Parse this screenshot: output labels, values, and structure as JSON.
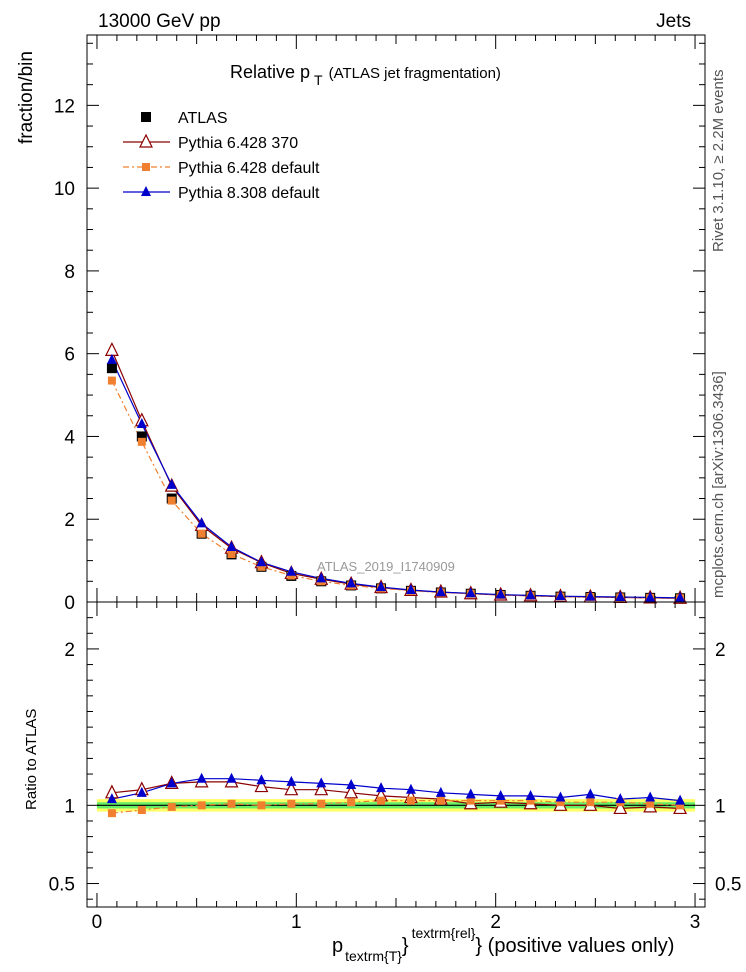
{
  "header": {
    "left": "13000 GeV pp",
    "right": "Jets"
  },
  "side": {
    "top": "Rivet 3.1.10, ≥ 2.2M events",
    "bottom": "mcplots.cern.ch [arXiv:1306.3436]"
  },
  "chart_data": {
    "type": "line",
    "title_main": "Relative p",
    "title_sub": "T",
    "title_rest": "(ATLAS jet fragmentation)",
    "watermark": "ATLAS_2019_I1740909",
    "ylabel": "fraction/bin",
    "ratio_ylabel": "Ratio to ATLAS",
    "xlabel_main": "p",
    "xlabel_sub": "textrm{T}",
    "xlabel_sup": "textrm{rel}",
    "xlabel_rest": "} (positive values only)",
    "xlim": [
      -0.05,
      3.05
    ],
    "ylim": [
      0,
      13.7
    ],
    "ratio_ylim": [
      0.35,
      2.3
    ],
    "x_ticks": [
      "0",
      "1",
      "2",
      "3"
    ],
    "y_ticks": [
      "0",
      "2",
      "4",
      "6",
      "8",
      "10",
      "12"
    ],
    "ratio_ticks": [
      "0.5",
      "1",
      "2"
    ],
    "x": [
      0.075,
      0.225,
      0.375,
      0.525,
      0.675,
      0.825,
      0.975,
      1.125,
      1.275,
      1.425,
      1.575,
      1.725,
      1.875,
      2.025,
      2.175,
      2.325,
      2.475,
      2.625,
      2.775,
      2.925
    ],
    "series": [
      {
        "name": "ATLAS",
        "color": "#000000",
        "marker": "square",
        "values": [
          5.65,
          4.0,
          2.5,
          1.65,
          1.15,
          0.85,
          0.63,
          0.5,
          0.4,
          0.33,
          0.27,
          0.23,
          0.2,
          0.17,
          0.15,
          0.13,
          0.12,
          0.11,
          0.1,
          0.09
        ],
        "ratio": [
          1.0,
          1.0,
          1.0,
          1.0,
          1.0,
          1.0,
          1.0,
          1.0,
          1.0,
          1.0,
          1.0,
          1.0,
          1.0,
          1.0,
          1.0,
          1.0,
          1.0,
          1.0,
          1.0,
          1.0
        ]
      },
      {
        "name": "Pythia 6.428 370",
        "color": "#8b0000",
        "marker": "triangle-open",
        "values": [
          6.08,
          4.38,
          2.8,
          1.85,
          1.3,
          0.95,
          0.69,
          0.55,
          0.43,
          0.35,
          0.28,
          0.24,
          0.2,
          0.17,
          0.15,
          0.13,
          0.12,
          0.11,
          0.1,
          0.09
        ],
        "ratio": [
          1.08,
          1.1,
          1.14,
          1.15,
          1.15,
          1.12,
          1.1,
          1.1,
          1.08,
          1.06,
          1.05,
          1.04,
          1.01,
          1.02,
          1.01,
          1.0,
          1.0,
          0.98,
          0.99,
          0.98
        ]
      },
      {
        "name": "Pythia 6.428 default",
        "color": "#f08030",
        "marker": "square-small",
        "dashed": true,
        "values": [
          5.35,
          3.87,
          2.45,
          1.65,
          1.16,
          0.85,
          0.64,
          0.5,
          0.4,
          0.33,
          0.27,
          0.23,
          0.2,
          0.17,
          0.15,
          0.13,
          0.12,
          0.11,
          0.1,
          0.09
        ],
        "ratio": [
          0.95,
          0.97,
          0.99,
          1.0,
          1.01,
          1.0,
          1.01,
          1.01,
          1.02,
          1.03,
          1.03,
          1.03,
          1.03,
          1.03,
          1.03,
          1.02,
          1.02,
          1.02,
          1.01,
          1.0
        ]
      },
      {
        "name": "Pythia 8.308 default",
        "color": "#0000cc",
        "marker": "triangle",
        "values": [
          5.85,
          4.3,
          2.83,
          1.9,
          1.33,
          0.96,
          0.73,
          0.57,
          0.45,
          0.36,
          0.29,
          0.24,
          0.21,
          0.18,
          0.16,
          0.14,
          0.13,
          0.12,
          0.11,
          0.1
        ],
        "ratio": [
          1.04,
          1.08,
          1.14,
          1.17,
          1.17,
          1.16,
          1.15,
          1.14,
          1.13,
          1.11,
          1.1,
          1.08,
          1.07,
          1.06,
          1.06,
          1.05,
          1.07,
          1.04,
          1.05,
          1.03
        ]
      }
    ]
  }
}
